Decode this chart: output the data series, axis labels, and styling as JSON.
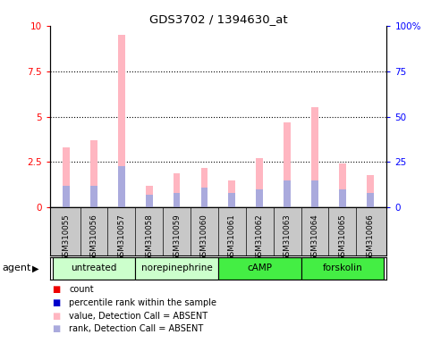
{
  "title": "GDS3702 / 1394630_at",
  "samples": [
    "GSM310055",
    "GSM310056",
    "GSM310057",
    "GSM310058",
    "GSM310059",
    "GSM310060",
    "GSM310061",
    "GSM310062",
    "GSM310063",
    "GSM310064",
    "GSM310065",
    "GSM310066"
  ],
  "pink_values": [
    3.3,
    3.7,
    9.5,
    1.2,
    1.9,
    2.2,
    1.5,
    2.7,
    4.7,
    5.5,
    2.4,
    1.8
  ],
  "blue_values": [
    1.2,
    1.2,
    2.3,
    0.7,
    0.8,
    1.1,
    0.8,
    1.0,
    1.5,
    1.5,
    1.0,
    0.8
  ],
  "ylim_left": [
    0,
    10
  ],
  "ylim_right": [
    0,
    100
  ],
  "yticks_left": [
    0,
    2.5,
    5.0,
    7.5,
    10
  ],
  "yticks_right": [
    0,
    25,
    50,
    75,
    100
  ],
  "ytick_labels_left": [
    "0",
    "2.5",
    "5",
    "7.5",
    "10"
  ],
  "ytick_labels_right": [
    "0",
    "25",
    "50",
    "75",
    "100%"
  ],
  "agent_groups": [
    {
      "label": "untreated",
      "start": 0,
      "end": 3
    },
    {
      "label": "norepinephrine",
      "start": 3,
      "end": 6
    },
    {
      "label": "cAMP",
      "start": 6,
      "end": 9
    },
    {
      "label": "forskolin",
      "start": 9,
      "end": 12
    }
  ],
  "group_colors": [
    "#CCFFCC",
    "#CCFFCC",
    "#44EE44",
    "#44EE44"
  ],
  "bar_width": 0.25,
  "pink_color": "#FFB6C1",
  "blue_color": "#AAAADD",
  "red_color": "#EE0000",
  "dark_blue_color": "#0000CC",
  "bg_color": "#C8C8C8",
  "legend_items": [
    {
      "color": "#EE0000",
      "label": "count"
    },
    {
      "color": "#0000CC",
      "label": "percentile rank within the sample"
    },
    {
      "color": "#FFB6C1",
      "label": "value, Detection Call = ABSENT"
    },
    {
      "color": "#AAAADD",
      "label": "rank, Detection Call = ABSENT"
    }
  ],
  "agent_label": "agent",
  "dotted_lines": [
    2.5,
    5.0,
    7.5
  ]
}
